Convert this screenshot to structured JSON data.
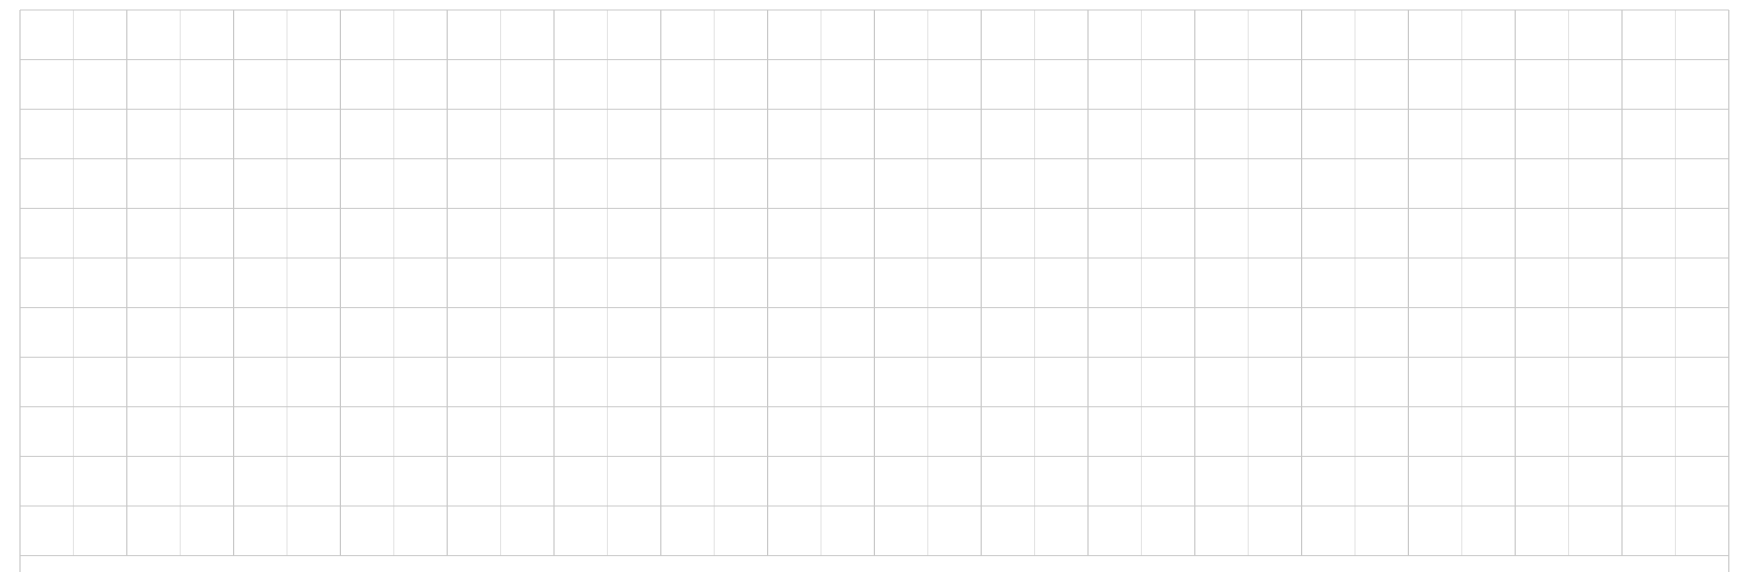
{
  "sheet": {
    "columns": 32,
    "rows": 11,
    "selected_cell": null
  },
  "colors": {
    "background": "#ffffff",
    "major_gridline": "#c8c8c8",
    "minor_gridline": "#e2e2e2"
  }
}
